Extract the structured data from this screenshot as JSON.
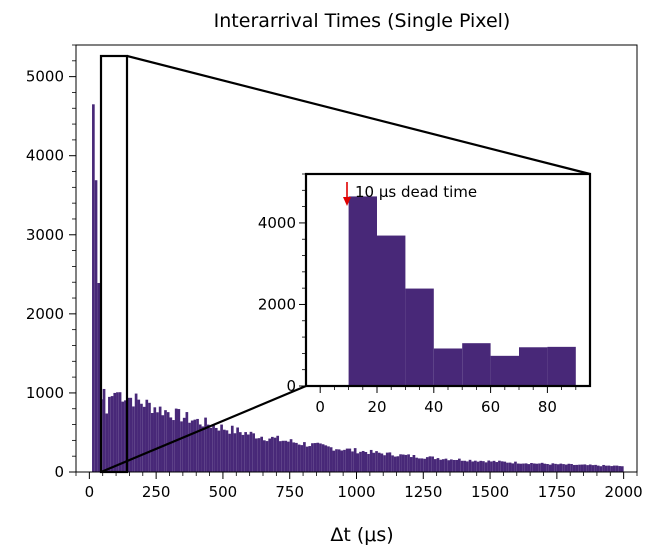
{
  "chart_data": [
    {
      "id": "main",
      "type": "bar",
      "title": "Interarrival Times (Single Pixel)",
      "xlabel": "Δt (μs)",
      "ylabel": "",
      "xlim": [
        -50,
        2050
      ],
      "ylim": [
        0,
        5400
      ],
      "xticks": [
        0,
        250,
        500,
        750,
        1000,
        1250,
        1500,
        1750,
        2000
      ],
      "yticks": [
        0,
        1000,
        2000,
        3000,
        4000,
        5000
      ],
      "bin_width": 10,
      "bar_color": "#482878",
      "grid": false,
      "bin_start": 10,
      "values": [
        4650,
        3690,
        2390,
        920,
        1050,
        740,
        950,
        960,
        1000
      ]
    },
    {
      "id": "inset",
      "type": "bar",
      "title": "",
      "xlabel": "",
      "ylabel": "",
      "xlim": [
        -5,
        95
      ],
      "ylim": [
        0,
        5200
      ],
      "xticks": [
        0,
        20,
        40,
        60,
        80
      ],
      "yticks": [
        0,
        2000,
        4000
      ],
      "bin_width": 10,
      "bar_color": "#482878",
      "bins": [
        {
          "x": 10,
          "value": 4650
        },
        {
          "x": 20,
          "value": 3690
        },
        {
          "x": 30,
          "value": 2390
        },
        {
          "x": 40,
          "value": 920
        },
        {
          "x": 50,
          "value": 1050
        },
        {
          "x": 60,
          "value": 740
        },
        {
          "x": 70,
          "value": 950
        },
        {
          "x": 80,
          "value": 960
        }
      ],
      "annotation": {
        "text": "10 μs dead time",
        "x": 10,
        "arrow_color": "#e00000"
      }
    }
  ]
}
